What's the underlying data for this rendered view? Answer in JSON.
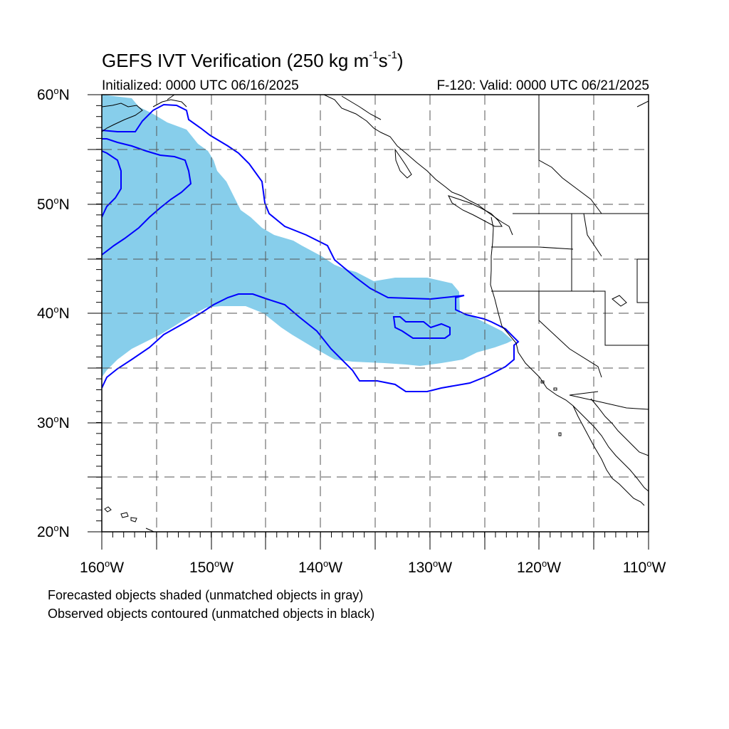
{
  "header": {
    "title_main": "GEFS IVT Verification (250 kg m",
    "title_exp1": "-1",
    "title_mid": "s",
    "title_exp2": "-1",
    "title_end": ")",
    "initialized": "Initialized: 0000 UTC 06/16/2025",
    "valid": "F-120: Valid: 0000 UTC 06/21/2025"
  },
  "axes": {
    "lat_ticks": [
      {
        "value": "60",
        "hemi": "N"
      },
      {
        "value": "50",
        "hemi": "N"
      },
      {
        "value": "40",
        "hemi": "N"
      },
      {
        "value": "30",
        "hemi": "N"
      },
      {
        "value": "20",
        "hemi": "N"
      }
    ],
    "lon_ticks": [
      {
        "value": "160",
        "hemi": "W"
      },
      {
        "value": "150",
        "hemi": "W"
      },
      {
        "value": "140",
        "hemi": "W"
      },
      {
        "value": "130",
        "hemi": "W"
      },
      {
        "value": "120",
        "hemi": "W"
      },
      {
        "value": "110",
        "hemi": "W"
      }
    ],
    "lat_range": [
      20,
      60
    ],
    "lon_range": [
      -160,
      -110
    ]
  },
  "legend": {
    "line1": "Forecasted objects shaded (unmatched objects in gray)",
    "line2": "Observed objects contoured (unmatched objects in black)"
  },
  "colors": {
    "forecast_fill": "#87ceeb",
    "observed_contour": "#0000ff",
    "coastline": "#000000",
    "gridline": "#555555"
  }
}
